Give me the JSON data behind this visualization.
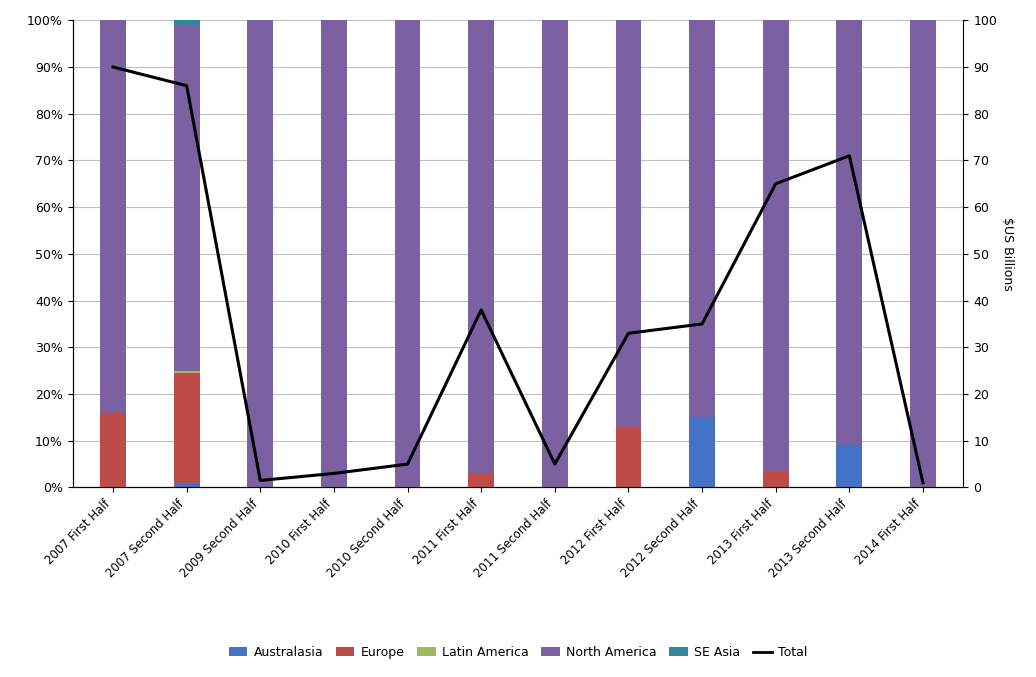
{
  "categories": [
    "2007 First Half",
    "2007 Second Half",
    "2009 Second Half",
    "2010 First Half",
    "2010 Second Half",
    "2011 First Half",
    "2011 Second Half",
    "2012 First Half",
    "2012 Second Half",
    "2013 First Half",
    "2013 Second Half",
    "2014 First Half"
  ],
  "australasia": [
    0.0,
    1.0,
    0.0,
    0.0,
    0.0,
    0.0,
    0.0,
    0.0,
    15.0,
    0.0,
    9.0,
    0.0
  ],
  "europe": [
    16.0,
    23.5,
    0.0,
    0.0,
    0.0,
    3.0,
    0.0,
    13.0,
    0.0,
    3.5,
    0.0,
    0.0
  ],
  "latin_america": [
    0.0,
    0.5,
    0.0,
    0.0,
    0.0,
    0.0,
    0.0,
    0.0,
    0.0,
    0.0,
    0.0,
    0.0
  ],
  "north_america": [
    84.0,
    74.0,
    100.0,
    100.0,
    100.0,
    97.0,
    100.0,
    87.0,
    85.0,
    96.5,
    91.0,
    100.0
  ],
  "se_asia": [
    0.0,
    1.0,
    0.0,
    0.0,
    0.0,
    0.0,
    0.0,
    0.0,
    0.0,
    0.0,
    0.0,
    0.0
  ],
  "total_billions": [
    90.0,
    86.0,
    1.5,
    3.0,
    5.0,
    38.0,
    5.0,
    33.0,
    35.0,
    65.0,
    71.0,
    1.0
  ],
  "colors": {
    "australasia": "#4472C4",
    "europe": "#BE4B48",
    "latin_america": "#9BBB59",
    "north_america": "#7B60A2",
    "se_asia": "#31869B"
  },
  "bar_width": 0.35,
  "ylim_left": [
    0,
    100
  ],
  "ylim_right": [
    0,
    100
  ],
  "ylabel_right": "$US Billions",
  "background_color": "#FFFFFF",
  "grid_color": "#C0C0C0",
  "yticks_pct": [
    0,
    10,
    20,
    30,
    40,
    50,
    60,
    70,
    80,
    90,
    100
  ],
  "ytick_labels_pct": [
    "0%",
    "10%",
    "20%",
    "30%",
    "40%",
    "50%",
    "60%",
    "70%",
    "80%",
    "90%",
    "100%"
  ],
  "ytick_labels_bn": [
    "0",
    "10",
    "20",
    "30",
    "40",
    "50",
    "60",
    "70",
    "80",
    "90",
    "100"
  ]
}
